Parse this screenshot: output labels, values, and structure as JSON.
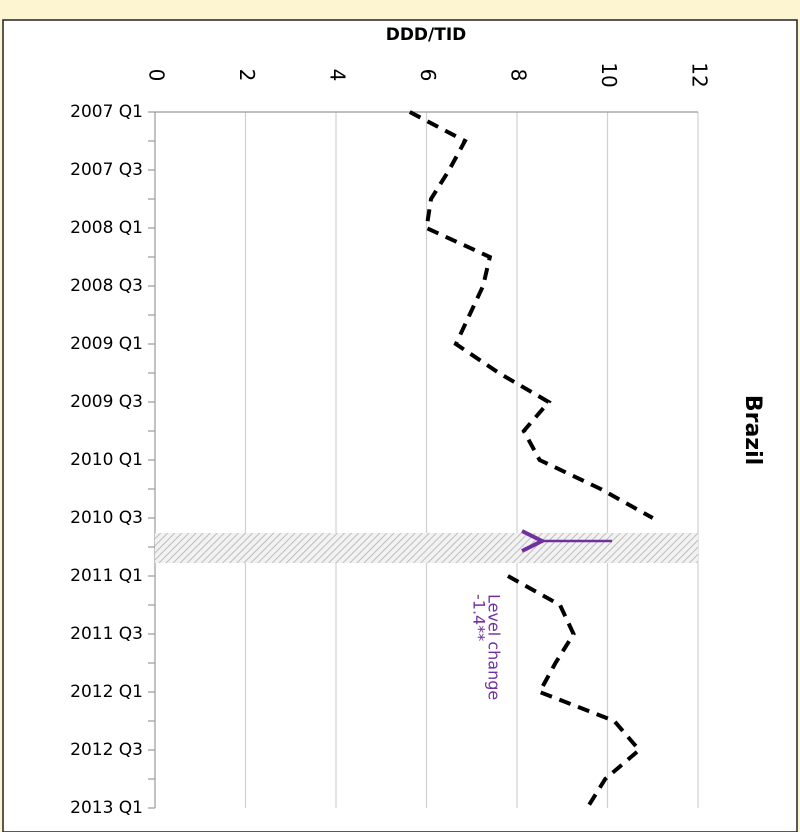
{
  "chart_data": {
    "type": "line",
    "orientation": "horizontal",
    "title": "DDD/TID",
    "panel_label": "Brazil",
    "annotation": [
      "Level change",
      "-1.4**"
    ],
    "annotation_color": "#7030a0",
    "categories": [
      "2007 Q1",
      null,
      "2007 Q3",
      null,
      "2008 Q1",
      null,
      "2008 Q3",
      null,
      "2009 Q1",
      null,
      "2009 Q3",
      null,
      "2010 Q1",
      null,
      "2010 Q3",
      null,
      "2011 Q1",
      null,
      "2011 Q3",
      null,
      "2012 Q1",
      null,
      "2012 Q3",
      null,
      "2013 Q1"
    ],
    "series": [
      {
        "name": "Brazil",
        "color": "#000000",
        "values": [
          5.63,
          6.85,
          6.5,
          6.1,
          6.0,
          7.4,
          7.25,
          6.95,
          6.65,
          7.6,
          8.7,
          8.15,
          8.5,
          9.85,
          11.0,
          null,
          7.8,
          8.95,
          9.25,
          8.85,
          8.5,
          10.15,
          10.7,
          9.95,
          9.55
        ]
      }
    ],
    "xlim": [
      0,
      12
    ],
    "xticks": [
      0,
      2,
      4,
      6,
      8,
      10,
      12
    ],
    "grid": true
  }
}
